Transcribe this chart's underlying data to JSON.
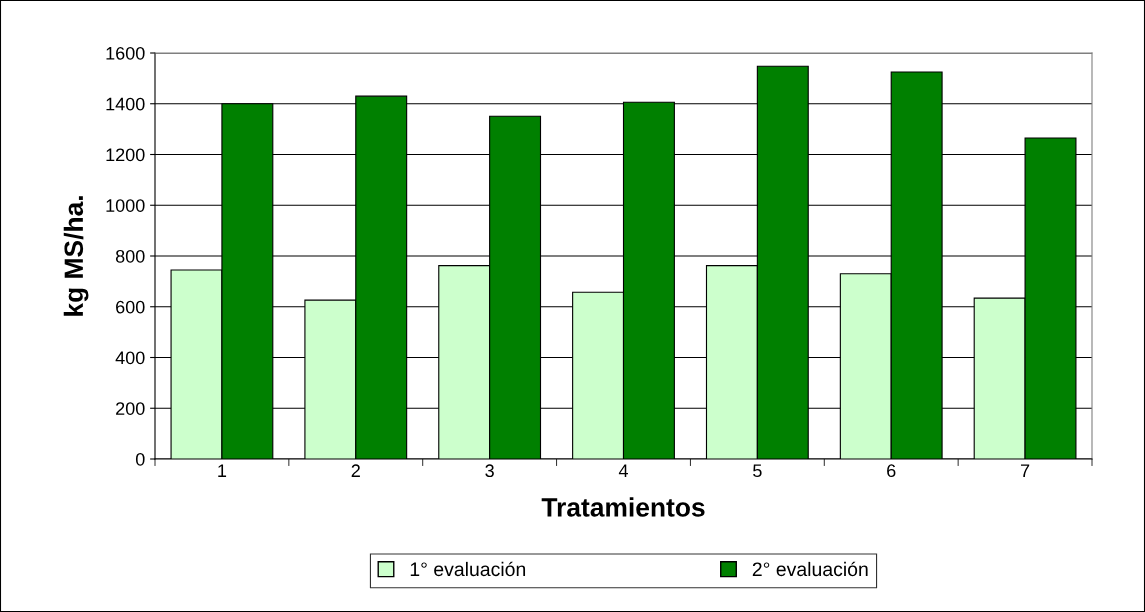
{
  "chart_data": {
    "type": "bar",
    "xlabel": "Tratamientos",
    "ylabel": "kg MS/ha.",
    "categories": [
      "1",
      "2",
      "3",
      "4",
      "5",
      "6",
      "7"
    ],
    "series": [
      {
        "name": "1° evaluación",
        "color": "#ccffcc",
        "values": [
          745,
          626,
          762,
          657,
          762,
          730,
          634
        ]
      },
      {
        "name": "2° evaluación",
        "color": "#008000",
        "values": [
          1400,
          1430,
          1351,
          1406,
          1548,
          1525,
          1265
        ]
      }
    ],
    "ylim": [
      0,
      1600
    ],
    "yticks": [
      0,
      200,
      400,
      600,
      800,
      1000,
      1200,
      1400,
      1600
    ],
    "grid": "y",
    "legend": "bottom"
  }
}
